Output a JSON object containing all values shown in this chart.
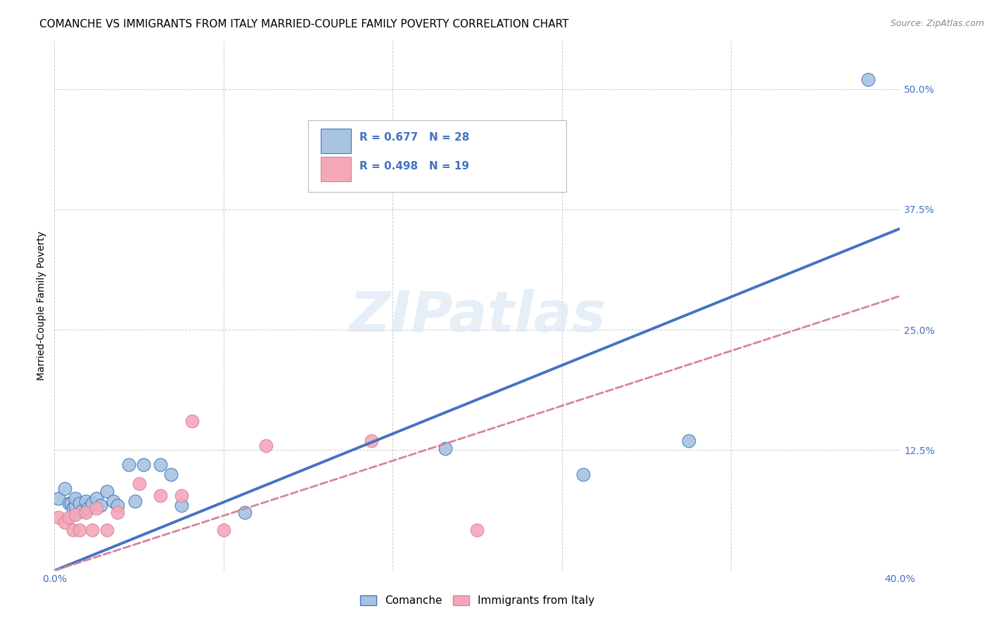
{
  "title": "COMANCHE VS IMMIGRANTS FROM ITALY MARRIED-COUPLE FAMILY POVERTY CORRELATION CHART",
  "source": "Source: ZipAtlas.com",
  "ylabel": "Married-Couple Family Poverty",
  "xlim": [
    0.0,
    0.4
  ],
  "ylim": [
    0.0,
    0.55
  ],
  "x_ticks": [
    0.0,
    0.08,
    0.16,
    0.24,
    0.32,
    0.4
  ],
  "y_ticks_right": [
    0.0,
    0.125,
    0.25,
    0.375,
    0.5
  ],
  "comanche_R": 0.677,
  "comanche_N": 28,
  "italy_R": 0.498,
  "italy_N": 19,
  "comanche_color": "#a8c4e0",
  "comanche_line_color": "#4472c4",
  "italy_color": "#f4a7b9",
  "italy_line_color": "#d4849a",
  "legend_label1": "Comanche",
  "legend_label2": "Immigrants from Italy",
  "comanche_x": [
    0.002,
    0.005,
    0.007,
    0.008,
    0.009,
    0.01,
    0.01,
    0.012,
    0.013,
    0.015,
    0.016,
    0.018,
    0.02,
    0.022,
    0.025,
    0.028,
    0.03,
    0.035,
    0.038,
    0.042,
    0.05,
    0.055,
    0.06,
    0.09,
    0.185,
    0.25,
    0.3,
    0.385
  ],
  "comanche_y": [
    0.075,
    0.085,
    0.07,
    0.07,
    0.065,
    0.068,
    0.075,
    0.07,
    0.062,
    0.072,
    0.065,
    0.07,
    0.075,
    0.068,
    0.082,
    0.072,
    0.068,
    0.11,
    0.072,
    0.11,
    0.11,
    0.1,
    0.068,
    0.06,
    0.127,
    0.1,
    0.135,
    0.51
  ],
  "italy_x": [
    0.002,
    0.005,
    0.007,
    0.009,
    0.01,
    0.012,
    0.015,
    0.018,
    0.02,
    0.025,
    0.03,
    0.04,
    0.05,
    0.06,
    0.065,
    0.08,
    0.1,
    0.15,
    0.2
  ],
  "italy_y": [
    0.055,
    0.05,
    0.055,
    0.042,
    0.058,
    0.042,
    0.06,
    0.042,
    0.065,
    0.042,
    0.06,
    0.09,
    0.078,
    0.078,
    0.155,
    0.042,
    0.13,
    0.135,
    0.042
  ],
  "comanche_trend": [
    0.03,
    0.355
  ],
  "italy_trend": [
    0.025,
    0.285
  ],
  "background_color": "#ffffff",
  "grid_color": "#cccccc",
  "title_fontsize": 11,
  "axis_label_fontsize": 10,
  "tick_fontsize": 10,
  "watermark": "ZIPatlas"
}
